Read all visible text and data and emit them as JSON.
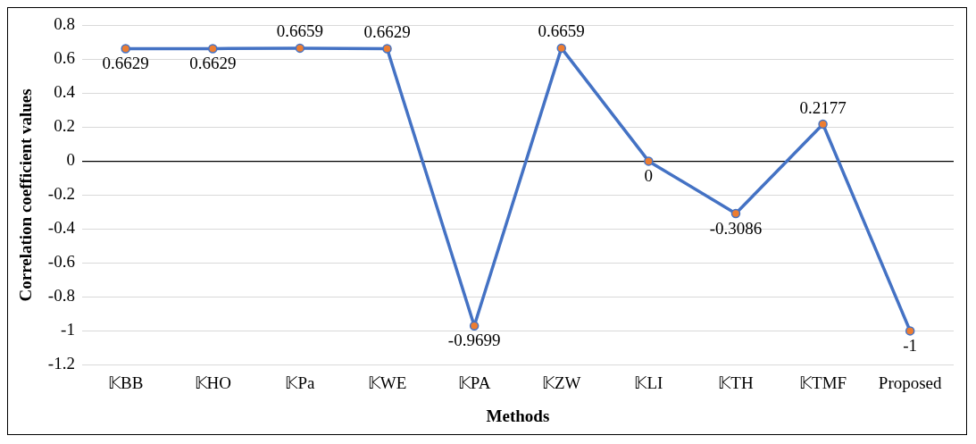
{
  "chart_data": {
    "type": "line",
    "xlabel": "Methods",
    "ylabel": "Correlation coefficient values",
    "categories": [
      "𝕂BB",
      "𝕂HO",
      "𝕂Pa",
      "𝕂WE",
      "𝕂PA",
      "𝕂ZW",
      "𝕂LI",
      "𝕂TH",
      "𝕂TMF",
      "Proposed"
    ],
    "series": [
      {
        "color": "#4472c4",
        "colors": [
          "#ed7d31",
          "#ed7d31",
          "#ed7d31",
          "#ed7d31",
          "#ed7d31",
          "#ed7d31",
          "#ed7d31",
          "#ed7d31",
          "#ed7d31",
          "#ed7d31"
        ],
        "values": [
          0.6629,
          0.6629,
          0.6659,
          0.6629,
          -0.9699,
          0.6659,
          0,
          -0.3086,
          0.2177,
          -1
        ]
      }
    ],
    "ylim": [
      -1.2,
      0.8
    ],
    "yticks": [
      -1.2,
      -1,
      -0.8,
      -0.6,
      -0.4,
      -0.2,
      0,
      0.2,
      0.4,
      0.6,
      0.8
    ],
    "grid": "y",
    "legend": false,
    "marker": "circle",
    "line_style": "solid",
    "data_labels": true
  }
}
